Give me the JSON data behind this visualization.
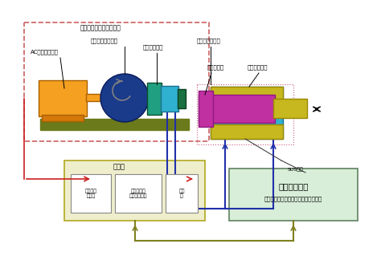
{
  "bg_color": "#f5f5f5",
  "title": "",
  "colors": {
    "orange": "#F5A020",
    "dark_orange": "#D4780A",
    "olive": "#6B7A1A",
    "blue_dark": "#1A3A8A",
    "blue_mid": "#2A60C0",
    "cyan": "#30B0D0",
    "teal": "#20A080",
    "green_dark": "#1A7040",
    "magenta": "#C030A0",
    "yellow_olive": "#C8B820",
    "light_green_box": "#D8EED8",
    "light_yellow_box": "#EEEECC",
    "red_line": "#CC2020",
    "blue_line": "#2030AA",
    "olive_line": "#808020",
    "pink_dashed": "#CC6080",
    "dashed_border": "#CC6060",
    "white": "#FFFFFF",
    "gray": "#888888",
    "black": "#111111"
  },
  "labels": {
    "servo_pump_unit": "水サーボポンプユニット",
    "ac_servo": "ACサーボモータ",
    "water_servo_pump": "水圧サーボポンプ",
    "torque_arm": "トルクアーム",
    "port_adapter": "ポートアダプタ",
    "position_sensor": "位置センサ",
    "water_cylinder": "水圧シリンダ",
    "sus_pipe": "SUS記管",
    "control_box": "制御盤",
    "motor_amp": "モータ用\nアンプ",
    "water_servo_ctrl": "水圧サーボ\nコントローラ",
    "converter": "変換\n器",
    "water_reservoir": "水圧リザーバ",
    "reservoir_sub": "（ブースト回路、温調システム含む）"
  }
}
